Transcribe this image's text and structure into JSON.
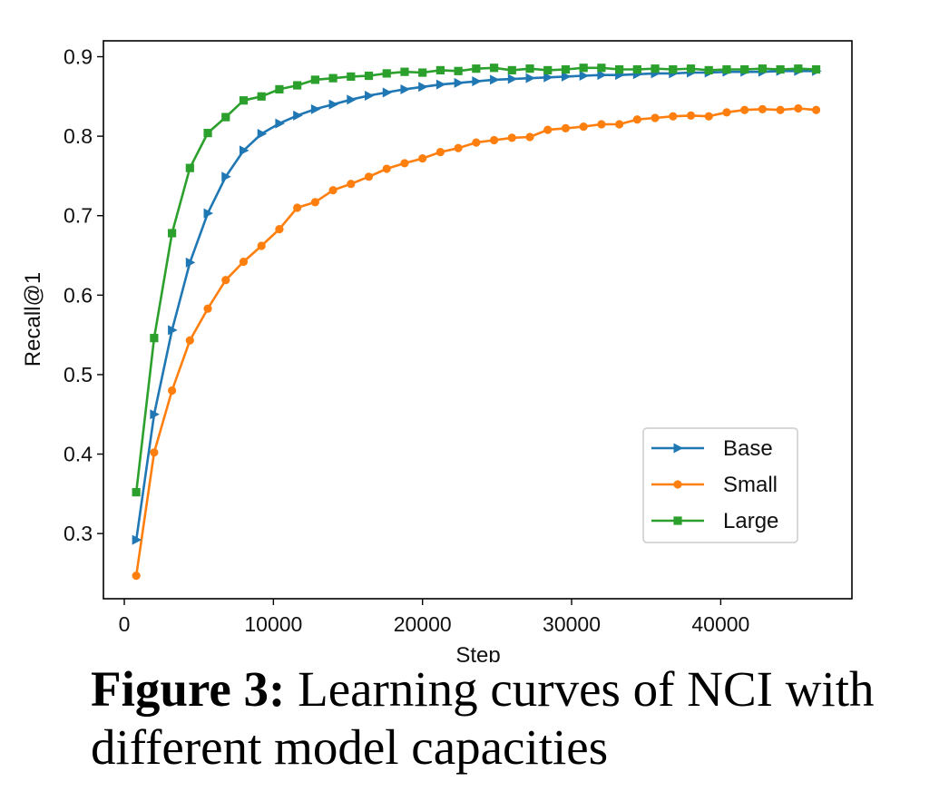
{
  "caption": {
    "label": "Figure 3:",
    "text": "Learning curves of NCI with different model capacities"
  },
  "chart_data": {
    "type": "line",
    "xlabel": "Step",
    "ylabel": "Recall@1",
    "xlim": [
      -1400,
      48800
    ],
    "ylim": [
      0.218,
      0.92
    ],
    "xticks": [
      0,
      10000,
      20000,
      30000,
      40000
    ],
    "xtick_labels": [
      "0",
      "10000",
      "20000",
      "30000",
      "40000"
    ],
    "yticks": [
      0.3,
      0.4,
      0.5,
      0.6,
      0.7,
      0.8,
      0.9
    ],
    "ytick_labels": [
      "0.3",
      "0.4",
      "0.5",
      "0.6",
      "0.7",
      "0.8",
      "0.9"
    ],
    "grid": false,
    "legend_position": "lower-right",
    "x": [
      800,
      2000,
      3200,
      4400,
      5600,
      6800,
      8000,
      9200,
      10400,
      11600,
      12800,
      14000,
      15200,
      16400,
      17600,
      18800,
      20000,
      21200,
      22400,
      23600,
      24800,
      26000,
      27200,
      28400,
      29600,
      30800,
      32000,
      33200,
      34400,
      35600,
      36800,
      38000,
      39200,
      40400,
      41600,
      42800,
      44000,
      45200,
      46400
    ],
    "series": [
      {
        "name": "Base",
        "color": "#1f77b4",
        "marker": "triangle-right",
        "values": [
          0.292,
          0.45,
          0.556,
          0.641,
          0.703,
          0.749,
          0.782,
          0.803,
          0.816,
          0.826,
          0.834,
          0.84,
          0.846,
          0.851,
          0.855,
          0.859,
          0.862,
          0.865,
          0.867,
          0.869,
          0.871,
          0.872,
          0.873,
          0.874,
          0.875,
          0.876,
          0.877,
          0.877,
          0.878,
          0.879,
          0.879,
          0.88,
          0.88,
          0.881,
          0.881,
          0.881,
          0.882,
          0.882,
          0.882
        ]
      },
      {
        "name": "Small",
        "color": "#ff7f0e",
        "marker": "circle",
        "values": [
          0.247,
          0.402,
          0.48,
          0.543,
          0.583,
          0.619,
          0.642,
          0.662,
          0.683,
          0.71,
          0.717,
          0.732,
          0.74,
          0.749,
          0.759,
          0.766,
          0.772,
          0.78,
          0.785,
          0.792,
          0.795,
          0.798,
          0.799,
          0.808,
          0.81,
          0.812,
          0.815,
          0.815,
          0.821,
          0.823,
          0.825,
          0.826,
          0.825,
          0.83,
          0.833,
          0.834,
          0.833,
          0.835,
          0.833
        ]
      },
      {
        "name": "Large",
        "color": "#2ca02c",
        "marker": "square",
        "values": [
          0.352,
          0.546,
          0.678,
          0.76,
          0.804,
          0.824,
          0.845,
          0.85,
          0.859,
          0.864,
          0.871,
          0.873,
          0.875,
          0.876,
          0.879,
          0.881,
          0.88,
          0.883,
          0.882,
          0.885,
          0.886,
          0.883,
          0.885,
          0.883,
          0.884,
          0.886,
          0.886,
          0.884,
          0.884,
          0.885,
          0.884,
          0.885,
          0.883,
          0.884,
          0.884,
          0.885,
          0.884,
          0.885,
          0.884
        ]
      }
    ]
  }
}
